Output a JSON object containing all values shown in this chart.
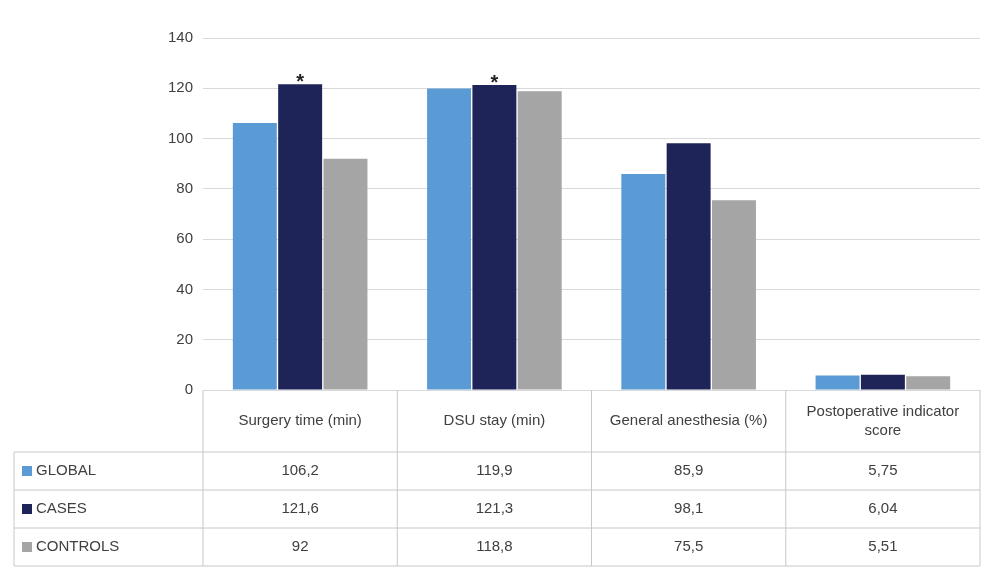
{
  "chart_data": {
    "type": "bar",
    "categories": [
      "Surgery time (min)",
      "DSU stay (min)",
      "General anesthesia (%)",
      "Postoperative indicator score"
    ],
    "series": [
      {
        "name": "GLOBAL",
        "color": "#5b9bd5",
        "values": [
          106.2,
          119.9,
          85.9,
          5.75
        ],
        "value_labels": [
          "106,2",
          "119,9",
          "85,9",
          "5,75"
        ]
      },
      {
        "name": "CASES",
        "color": "#1f2458",
        "values": [
          121.6,
          121.3,
          98.1,
          6.04
        ],
        "value_labels": [
          "121,6",
          "121,3",
          "98,1",
          "6,04"
        ]
      },
      {
        "name": "CONTROLS",
        "color": "#a5a5a5",
        "values": [
          92,
          118.8,
          75.5,
          5.51
        ],
        "value_labels": [
          "92",
          "118,8",
          "75,5",
          "5,51"
        ]
      }
    ],
    "annotations": [
      {
        "text": "*",
        "x": "Surgery time (min)",
        "y": 121.6
      },
      {
        "text": "*",
        "x": "DSU stay (min)",
        "y": 121.3
      }
    ],
    "ylim": [
      0,
      140
    ],
    "yticks": [
      0,
      20,
      40,
      60,
      80,
      100,
      120,
      140
    ],
    "grid": "y",
    "legend": "bottom"
  }
}
